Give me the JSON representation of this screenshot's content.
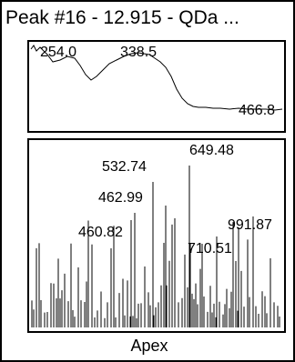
{
  "title": "Peak #16 - 12.915 - QDa ...",
  "footer": "Apex",
  "uv_panel": {
    "peak_labels": [
      "254.0",
      "338.5",
      "466.8"
    ]
  },
  "ms_panel": {
    "peak_labels": [
      "649.48",
      "532.74",
      "462.99",
      "460.82",
      "991.87",
      "710.51"
    ]
  },
  "colors": {
    "line": "#000000",
    "background": "#ffffff"
  }
}
